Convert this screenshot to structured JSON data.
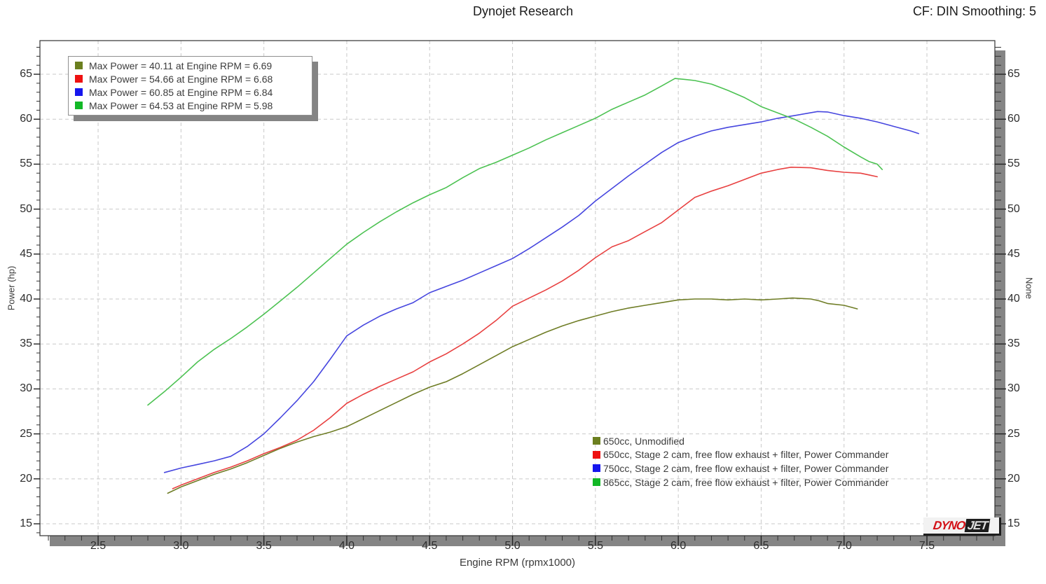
{
  "header": {
    "title": "Dynojet Research",
    "cf_label": "CF: DIN Smoothing: 5"
  },
  "logo": {
    "part1": "DYNO",
    "part2": "JET"
  },
  "chart_data": {
    "type": "line",
    "title": "Dynojet Research",
    "xlabel": "Engine RPM (rpmx1000)",
    "ylabel_left": "Power (hp)",
    "ylabel_right": "None",
    "xlim": [
      2.149,
      7.91
    ],
    "ylim": [
      13.7,
      68.74
    ],
    "grid": "dashed-gray-major",
    "x_ticks": {
      "values": [
        2.5,
        3.0,
        3.5,
        4.0,
        4.5,
        5.0,
        5.5,
        6.0,
        6.5,
        7.0,
        7.5
      ],
      "labels": [
        "2.5",
        "3.0",
        "3.5",
        "4.0",
        "4.5",
        "5.0",
        "5.5",
        "6.0",
        "6.5",
        "7.0",
        "7.5"
      ],
      "minor_start": 2.2,
      "minor_end": 7.9,
      "minor_step": 0.1
    },
    "y_ticks": {
      "values": [
        15,
        20,
        25,
        30,
        35,
        40,
        45,
        50,
        55,
        60,
        65
      ],
      "labels": [
        "15",
        "20",
        "25",
        "30",
        "35",
        "40",
        "45",
        "50",
        "55",
        "60",
        "65"
      ],
      "minor_start": 14,
      "minor_end": 68,
      "minor_step": 1
    },
    "legend_max_power": {
      "position": "top-left",
      "items": [
        {
          "label": "Max Power = 40.11 at Engine RPM = 6.69",
          "color": "#6b7f1f"
        },
        {
          "label": "Max Power = 54.66 at Engine RPM = 6.68",
          "color": "#ee1111"
        },
        {
          "label": "Max Power = 60.85 at Engine RPM = 6.84",
          "color": "#1616ee"
        },
        {
          "label": "Max Power = 64.53 at Engine RPM = 5.98",
          "color": "#12b826"
        }
      ]
    },
    "legend_series_position": "bottom-right-inside",
    "series": [
      {
        "name": "650cc, Unmodified",
        "swatch": "#6b7f1f",
        "color": "#6f7d26",
        "max_power": 40.11,
        "max_power_rpm": 6.69,
        "points": [
          [
            2.92,
            18.4
          ],
          [
            3.0,
            19.1
          ],
          [
            3.1,
            19.8
          ],
          [
            3.2,
            20.5
          ],
          [
            3.3,
            21.1
          ],
          [
            3.4,
            21.8
          ],
          [
            3.5,
            22.6
          ],
          [
            3.6,
            23.4
          ],
          [
            3.7,
            24.1
          ],
          [
            3.8,
            24.7
          ],
          [
            3.9,
            25.2
          ],
          [
            4.0,
            25.8
          ],
          [
            4.1,
            26.7
          ],
          [
            4.2,
            27.6
          ],
          [
            4.3,
            28.5
          ],
          [
            4.4,
            29.4
          ],
          [
            4.5,
            30.2
          ],
          [
            4.6,
            30.8
          ],
          [
            4.7,
            31.7
          ],
          [
            4.8,
            32.7
          ],
          [
            4.9,
            33.7
          ],
          [
            5.0,
            34.7
          ],
          [
            5.1,
            35.5
          ],
          [
            5.2,
            36.3
          ],
          [
            5.3,
            37.0
          ],
          [
            5.4,
            37.6
          ],
          [
            5.5,
            38.1
          ],
          [
            5.6,
            38.6
          ],
          [
            5.7,
            39.0
          ],
          [
            5.8,
            39.3
          ],
          [
            5.9,
            39.6
          ],
          [
            6.0,
            39.9
          ],
          [
            6.1,
            40.0
          ],
          [
            6.2,
            40.0
          ],
          [
            6.3,
            39.9
          ],
          [
            6.4,
            40.0
          ],
          [
            6.5,
            39.9
          ],
          [
            6.6,
            40.0
          ],
          [
            6.69,
            40.11
          ],
          [
            6.8,
            40.0
          ],
          [
            6.85,
            39.8
          ],
          [
            6.9,
            39.5
          ],
          [
            7.0,
            39.3
          ],
          [
            7.08,
            38.9
          ]
        ]
      },
      {
        "name": "650cc, Stage 2 cam, free flow exhaust + filter, Power Commander",
        "swatch": "#ee1111",
        "color": "#e84040",
        "max_power": 54.66,
        "max_power_rpm": 6.68,
        "points": [
          [
            2.95,
            18.9
          ],
          [
            3.0,
            19.3
          ],
          [
            3.1,
            20.0
          ],
          [
            3.2,
            20.7
          ],
          [
            3.3,
            21.3
          ],
          [
            3.4,
            22.0
          ],
          [
            3.5,
            22.8
          ],
          [
            3.6,
            23.5
          ],
          [
            3.7,
            24.3
          ],
          [
            3.8,
            25.4
          ],
          [
            3.9,
            26.8
          ],
          [
            4.0,
            28.4
          ],
          [
            4.1,
            29.4
          ],
          [
            4.2,
            30.3
          ],
          [
            4.3,
            31.1
          ],
          [
            4.4,
            31.9
          ],
          [
            4.5,
            33.0
          ],
          [
            4.6,
            33.9
          ],
          [
            4.7,
            35.0
          ],
          [
            4.8,
            36.2
          ],
          [
            4.9,
            37.6
          ],
          [
            5.0,
            39.2
          ],
          [
            5.1,
            40.1
          ],
          [
            5.2,
            41.0
          ],
          [
            5.3,
            42.0
          ],
          [
            5.4,
            43.2
          ],
          [
            5.5,
            44.6
          ],
          [
            5.6,
            45.8
          ],
          [
            5.7,
            46.5
          ],
          [
            5.8,
            47.5
          ],
          [
            5.9,
            48.5
          ],
          [
            6.0,
            49.9
          ],
          [
            6.1,
            51.3
          ],
          [
            6.2,
            52.0
          ],
          [
            6.3,
            52.6
          ],
          [
            6.4,
            53.3
          ],
          [
            6.5,
            54.0
          ],
          [
            6.6,
            54.4
          ],
          [
            6.68,
            54.66
          ],
          [
            6.8,
            54.6
          ],
          [
            6.9,
            54.3
          ],
          [
            7.0,
            54.1
          ],
          [
            7.1,
            54.0
          ],
          [
            7.15,
            53.8
          ],
          [
            7.2,
            53.6
          ]
        ]
      },
      {
        "name": "750cc, Stage 2 cam, free flow exhaust + filter, Power Commander",
        "swatch": "#1616ee",
        "color": "#4646df",
        "max_power": 60.85,
        "max_power_rpm": 6.84,
        "points": [
          [
            2.9,
            20.7
          ],
          [
            3.0,
            21.2
          ],
          [
            3.1,
            21.6
          ],
          [
            3.2,
            22.0
          ],
          [
            3.3,
            22.5
          ],
          [
            3.4,
            23.6
          ],
          [
            3.5,
            25.0
          ],
          [
            3.6,
            26.8
          ],
          [
            3.7,
            28.7
          ],
          [
            3.8,
            30.8
          ],
          [
            3.9,
            33.3
          ],
          [
            4.0,
            35.9
          ],
          [
            4.1,
            37.1
          ],
          [
            4.2,
            38.1
          ],
          [
            4.3,
            38.9
          ],
          [
            4.4,
            39.6
          ],
          [
            4.5,
            40.7
          ],
          [
            4.6,
            41.4
          ],
          [
            4.7,
            42.1
          ],
          [
            4.8,
            42.9
          ],
          [
            4.9,
            43.7
          ],
          [
            5.0,
            44.5
          ],
          [
            5.1,
            45.6
          ],
          [
            5.2,
            46.8
          ],
          [
            5.3,
            48.0
          ],
          [
            5.4,
            49.3
          ],
          [
            5.5,
            50.9
          ],
          [
            5.6,
            52.3
          ],
          [
            5.7,
            53.7
          ],
          [
            5.8,
            55.0
          ],
          [
            5.9,
            56.3
          ],
          [
            6.0,
            57.4
          ],
          [
            6.1,
            58.1
          ],
          [
            6.2,
            58.7
          ],
          [
            6.3,
            59.1
          ],
          [
            6.4,
            59.4
          ],
          [
            6.5,
            59.7
          ],
          [
            6.6,
            60.1
          ],
          [
            6.7,
            60.4
          ],
          [
            6.84,
            60.85
          ],
          [
            6.9,
            60.8
          ],
          [
            7.0,
            60.4
          ],
          [
            7.1,
            60.1
          ],
          [
            7.2,
            59.7
          ],
          [
            7.3,
            59.2
          ],
          [
            7.4,
            58.7
          ],
          [
            7.45,
            58.4
          ]
        ]
      },
      {
        "name": "865cc, Stage 2 cam, free flow exhaust + filter, Power Commander",
        "swatch": "#12b826",
        "color": "#4cc252",
        "max_power": 64.53,
        "max_power_rpm": 5.98,
        "points": [
          [
            2.8,
            28.2
          ],
          [
            2.9,
            29.7
          ],
          [
            3.0,
            31.3
          ],
          [
            3.1,
            33.0
          ],
          [
            3.2,
            34.4
          ],
          [
            3.25,
            35.0
          ],
          [
            3.3,
            35.6
          ],
          [
            3.4,
            36.9
          ],
          [
            3.5,
            38.3
          ],
          [
            3.6,
            39.8
          ],
          [
            3.7,
            41.3
          ],
          [
            3.8,
            42.9
          ],
          [
            3.9,
            44.5
          ],
          [
            4.0,
            46.1
          ],
          [
            4.1,
            47.4
          ],
          [
            4.2,
            48.6
          ],
          [
            4.3,
            49.7
          ],
          [
            4.4,
            50.7
          ],
          [
            4.5,
            51.6
          ],
          [
            4.6,
            52.4
          ],
          [
            4.7,
            53.5
          ],
          [
            4.8,
            54.5
          ],
          [
            4.9,
            55.2
          ],
          [
            5.0,
            56.0
          ],
          [
            5.1,
            56.8
          ],
          [
            5.2,
            57.7
          ],
          [
            5.3,
            58.5
          ],
          [
            5.4,
            59.3
          ],
          [
            5.5,
            60.1
          ],
          [
            5.6,
            61.1
          ],
          [
            5.7,
            61.9
          ],
          [
            5.8,
            62.7
          ],
          [
            5.9,
            63.7
          ],
          [
            5.98,
            64.53
          ],
          [
            6.05,
            64.4
          ],
          [
            6.1,
            64.3
          ],
          [
            6.2,
            63.9
          ],
          [
            6.3,
            63.2
          ],
          [
            6.4,
            62.4
          ],
          [
            6.5,
            61.4
          ],
          [
            6.6,
            60.7
          ],
          [
            6.7,
            60.0
          ],
          [
            6.8,
            59.1
          ],
          [
            6.9,
            58.1
          ],
          [
            7.0,
            56.9
          ],
          [
            7.1,
            55.8
          ],
          [
            7.15,
            55.3
          ],
          [
            7.2,
            55.0
          ],
          [
            7.23,
            54.4
          ]
        ]
      }
    ]
  }
}
